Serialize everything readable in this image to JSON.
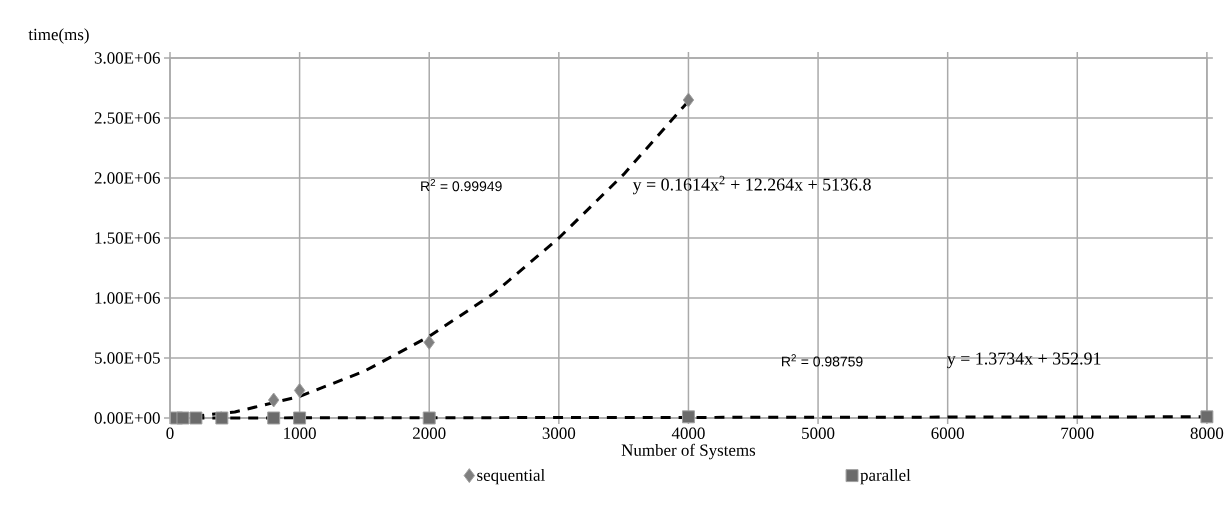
{
  "chart_data": {
    "type": "scatter",
    "xlabel": "Number of Systems",
    "ylabel": "time(ms)",
    "xlim": [
      0,
      8000
    ],
    "xticks": [
      0,
      1000,
      2000,
      3000,
      4000,
      5000,
      6000,
      7000,
      8000
    ],
    "ylim": [
      0,
      3000000
    ],
    "yticks": [
      {
        "value": 0,
        "label": "0.00E+00"
      },
      {
        "value": 500000,
        "label": "5.00E+05"
      },
      {
        "value": 1000000,
        "label": "1.00E+06"
      },
      {
        "value": 1500000,
        "label": "1.50E+06"
      },
      {
        "value": 2000000,
        "label": "2.00E+06"
      },
      {
        "value": 2500000,
        "label": "2.50E+06"
      },
      {
        "value": 3000000,
        "label": "3.00E+06"
      }
    ],
    "grid": true,
    "legend": "bottom",
    "series": [
      {
        "name": "sequential",
        "marker": "diamond",
        "color": "#7f7f7f",
        "x": [
          800,
          1000,
          2000,
          4000
        ],
        "values": [
          150000,
          230000,
          630000,
          2650000
        ]
      },
      {
        "name": "parallel",
        "marker": "square",
        "color": "#6b6b6b",
        "x": [
          50,
          100,
          200,
          400,
          800,
          1000,
          2000,
          4000,
          8000
        ],
        "values": [
          0,
          0,
          0,
          0,
          0,
          0,
          0,
          10000,
          10000
        ]
      },
      {
        "type": "line",
        "line_style": "dashed",
        "marker": "none",
        "color": "#000000",
        "x": [
          50,
          500,
          1000,
          1500,
          2000,
          2500,
          3000,
          3500,
          4000
        ],
        "values": [
          0,
          50000,
          180000,
          390000,
          680000,
          1040000,
          1500000,
          2030000,
          2640000
        ]
      },
      {
        "type": "line",
        "line_style": "dashed",
        "marker": "none",
        "color": "#000000",
        "x": [
          50,
          8000
        ],
        "values": [
          0,
          10000
        ]
      }
    ],
    "annotations": [
      "R$^{2}$ = 0.99949",
      "y = 0.1614x$^{2}$ + 12.264x + 5136.8",
      "R$^{2}$ = 0.98759",
      "y = 1.3734x + 352.91"
    ]
  }
}
